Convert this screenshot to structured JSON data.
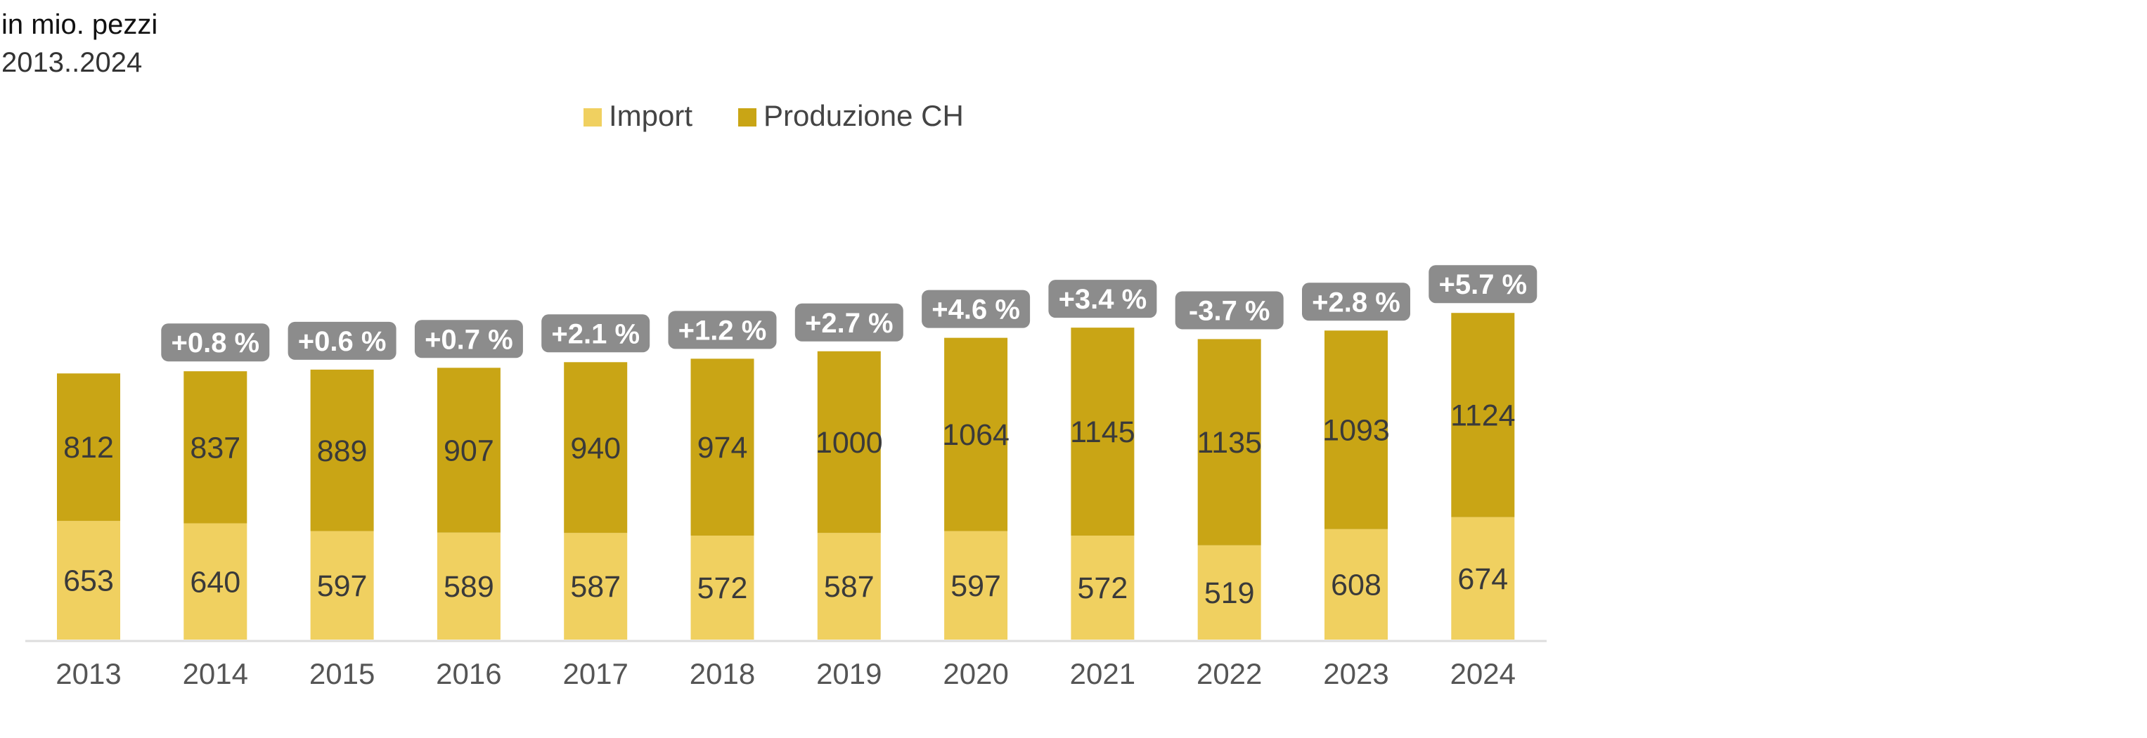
{
  "header": {
    "unit": "in mio. pezzi",
    "range": "2013..2024"
  },
  "colors": {
    "import": "#F0D060",
    "produzione": "#C9A515",
    "badge": "#8C8C8C",
    "axis": "#DDDDDD",
    "text": "#3A3A3A"
  },
  "chart_data": {
    "type": "bar",
    "stacked": true,
    "categories": [
      "2013",
      "2014",
      "2015",
      "2016",
      "2017",
      "2018",
      "2019",
      "2020",
      "2021",
      "2022",
      "2023",
      "2024"
    ],
    "series": [
      {
        "name": "Import",
        "values": [
          653,
          640,
          597,
          589,
          587,
          572,
          587,
          597,
          572,
          519,
          608,
          674
        ]
      },
      {
        "name": "Produzione CH",
        "values": [
          812,
          837,
          889,
          907,
          940,
          974,
          1000,
          1064,
          1145,
          1135,
          1093,
          1124
        ]
      }
    ],
    "change_labels": [
      "",
      "+0.8 %",
      "+0.6 %",
      "+0.7 %",
      "+2.1 %",
      "+1.2 %",
      "+2.7 %",
      "+4.6 %",
      "+3.4 %",
      "-3.7 %",
      "+2.8 %",
      "+5.7 %"
    ],
    "legend_position": "top-center",
    "grid": false
  }
}
